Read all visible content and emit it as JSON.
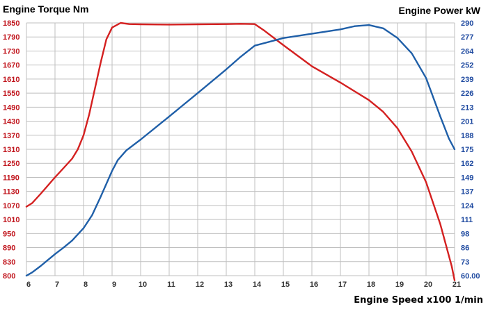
{
  "chart_data": {
    "type": "line",
    "title_left": "Engine Torque Nm",
    "title_right": "Engine Power kW",
    "xlabel": "Engine Speed x100 1/min",
    "colors": {
      "torque": "#d42020",
      "power": "#1f5fa8",
      "left_axis": "#c0141c",
      "right_axis": "#1f4aa0",
      "grid": "#bfbfbf"
    },
    "x_ticks": [
      "6",
      "7",
      "8",
      "9",
      "10",
      "11",
      "12",
      "13",
      "14",
      "15",
      "16",
      "17",
      "18",
      "19",
      "20",
      "21"
    ],
    "xlim": [
      6,
      21
    ],
    "left_ticks": [
      "800",
      "830",
      "890",
      "950",
      "1010",
      "1070",
      "1130",
      "1190",
      "1250",
      "1310",
      "1370",
      "1430",
      "1490",
      "1550",
      "1610",
      "1670",
      "1730",
      "1790",
      "1850"
    ],
    "right_ticks": [
      "60.00",
      "73",
      "86",
      "98",
      "111",
      "124",
      "137",
      "149",
      "162",
      "175",
      "188",
      "201",
      "213",
      "226",
      "239",
      "252",
      "264",
      "277",
      "290"
    ],
    "series": [
      {
        "name": "Engine Torque Nm",
        "axis": "left",
        "points": [
          [
            6,
            1065
          ],
          [
            6.2,
            1080
          ],
          [
            6.5,
            1120
          ],
          [
            7,
            1190
          ],
          [
            7.3,
            1230
          ],
          [
            7.6,
            1270
          ],
          [
            7.8,
            1310
          ],
          [
            8,
            1370
          ],
          [
            8.2,
            1460
          ],
          [
            8.4,
            1570
          ],
          [
            8.6,
            1680
          ],
          [
            8.8,
            1780
          ],
          [
            9,
            1830
          ],
          [
            9.3,
            1850
          ],
          [
            9.6,
            1845
          ],
          [
            10,
            1844
          ],
          [
            11,
            1843
          ],
          [
            12,
            1844
          ],
          [
            13,
            1845
          ],
          [
            13.5,
            1846
          ],
          [
            14,
            1845
          ],
          [
            14.3,
            1820
          ],
          [
            15,
            1755
          ],
          [
            16,
            1665
          ],
          [
            17,
            1595
          ],
          [
            18,
            1520
          ],
          [
            18.5,
            1470
          ],
          [
            19,
            1400
          ],
          [
            19.5,
            1300
          ],
          [
            20,
            1170
          ],
          [
            20.5,
            990
          ],
          [
            20.9,
            820
          ],
          [
            21,
            790
          ]
        ]
      },
      {
        "name": "Engine Power kW",
        "axis": "right",
        "points": [
          [
            6,
            60
          ],
          [
            6.2,
            63
          ],
          [
            6.5,
            69
          ],
          [
            7,
            80
          ],
          [
            7.3,
            86
          ],
          [
            7.6,
            92
          ],
          [
            8,
            103
          ],
          [
            8.3,
            115
          ],
          [
            8.6,
            132
          ],
          [
            9,
            155
          ],
          [
            9.2,
            165
          ],
          [
            9.5,
            174
          ],
          [
            10,
            184
          ],
          [
            11,
            205
          ],
          [
            12,
            226
          ],
          [
            13,
            248
          ],
          [
            13.5,
            259
          ],
          [
            14,
            269
          ],
          [
            15,
            276
          ],
          [
            16,
            280
          ],
          [
            17,
            284
          ],
          [
            17.5,
            287
          ],
          [
            18,
            288
          ],
          [
            18.5,
            285
          ],
          [
            19,
            276
          ],
          [
            19.5,
            262
          ],
          [
            20,
            240
          ],
          [
            20.5,
            205
          ],
          [
            20.8,
            185
          ],
          [
            21,
            175
          ]
        ]
      }
    ]
  }
}
